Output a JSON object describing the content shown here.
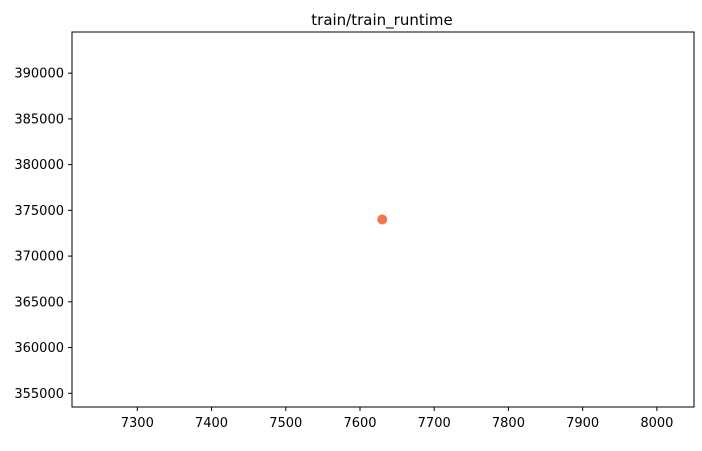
{
  "chart_data": {
    "type": "scatter",
    "title": "train/train_runtime",
    "xlabel": "",
    "ylabel": "",
    "xlim": [
      7212,
      8050
    ],
    "ylim": [
      353500,
      394500
    ],
    "xticks": [
      7300,
      7400,
      7500,
      7600,
      7700,
      7800,
      7900,
      8000
    ],
    "yticks": [
      355000,
      360000,
      365000,
      370000,
      375000,
      380000,
      385000,
      390000
    ],
    "grid": false,
    "series": [
      {
        "color": "#f4754b",
        "points": [
          {
            "x": 7630,
            "y": 374000
          }
        ]
      }
    ]
  }
}
